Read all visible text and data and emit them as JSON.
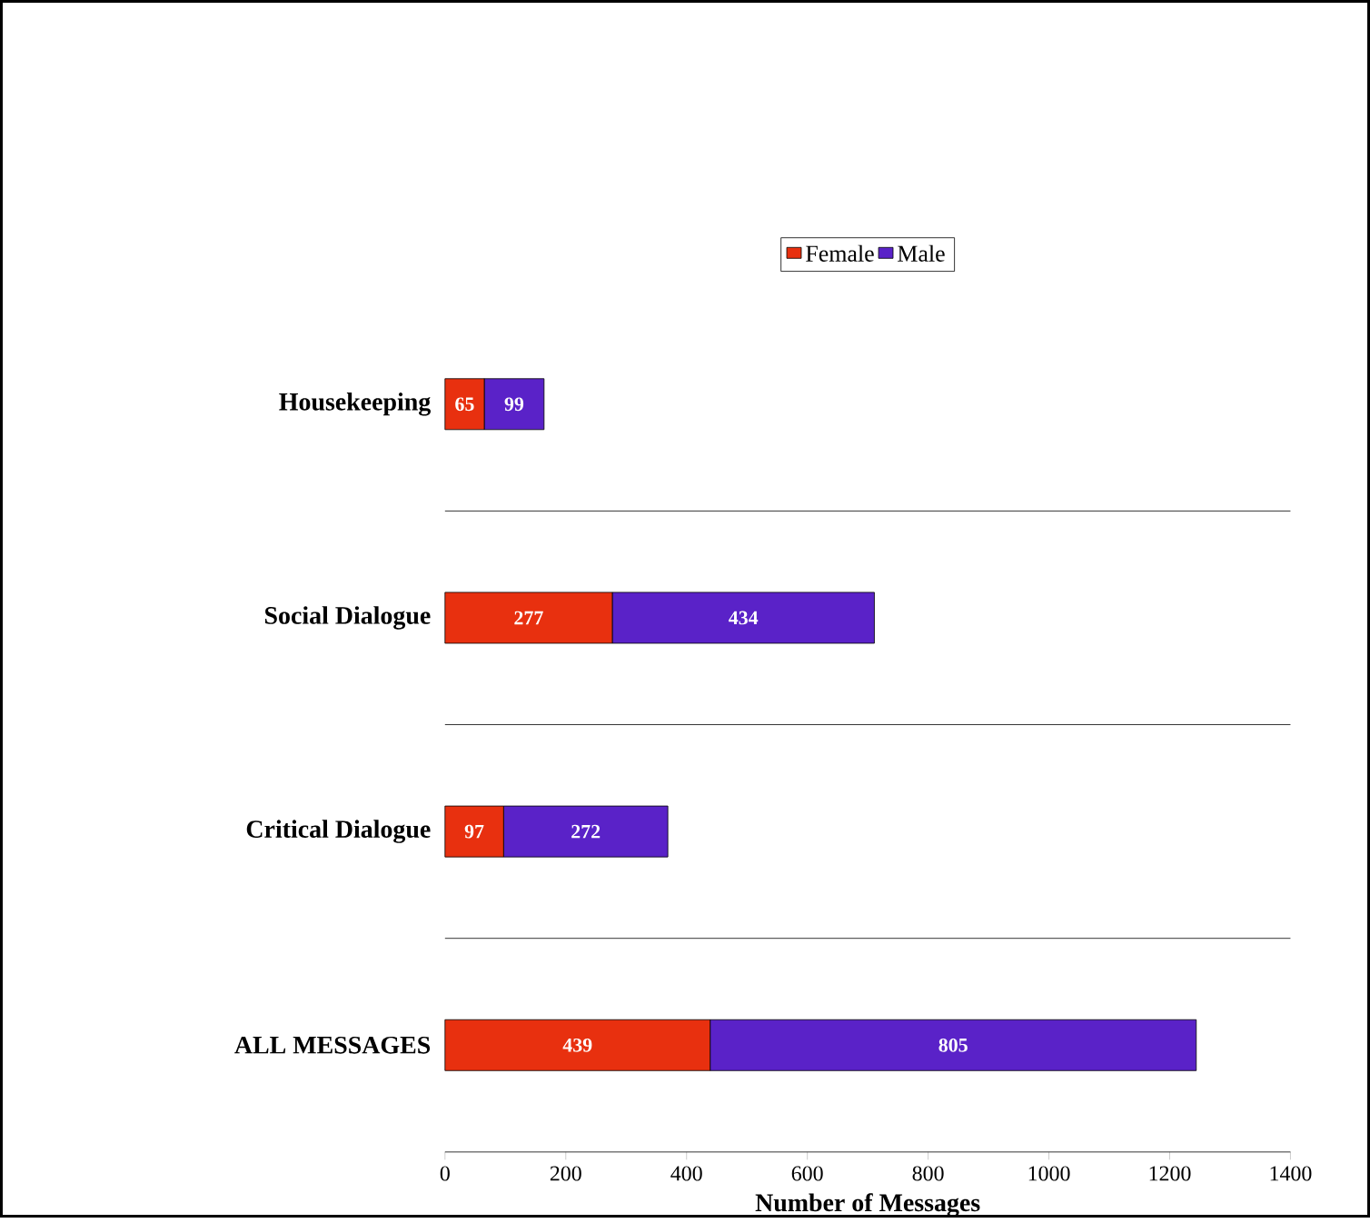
{
  "chart_data": {
    "type": "bar",
    "orientation": "horizontal",
    "stacked": true,
    "categories": [
      "Housekeeping",
      "Social Dialogue",
      "Critical Dialogue",
      "ALL MESSAGES"
    ],
    "series": [
      {
        "name": "Female",
        "color": "#e8300f",
        "values": [
          65,
          277,
          97,
          439
        ]
      },
      {
        "name": "Male",
        "color": "#5a22c8",
        "values": [
          99,
          434,
          272,
          805
        ]
      }
    ],
    "xlim": [
      0,
      1400
    ],
    "xticks": [
      0,
      200,
      400,
      600,
      800,
      1000,
      1200,
      1400
    ],
    "xlabel": "Number of Messages",
    "legend": "top",
    "data_labels": true
  }
}
